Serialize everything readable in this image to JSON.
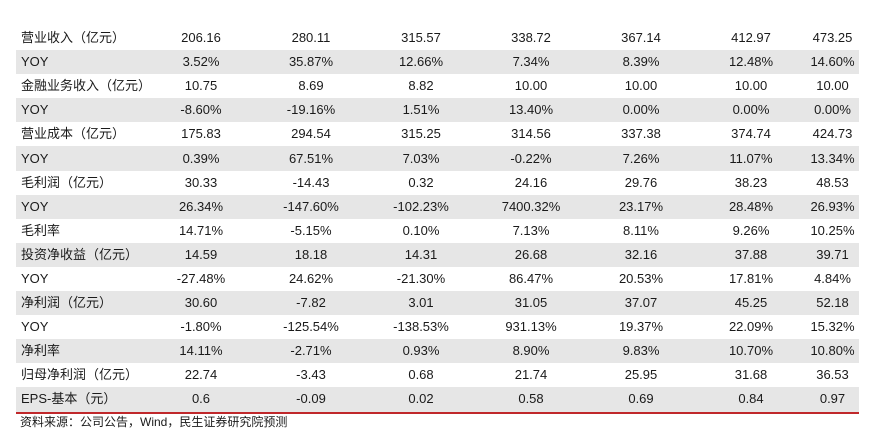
{
  "table": {
    "rows": [
      {
        "label": "营业收入（亿元）",
        "values": [
          "206.16",
          "280.11",
          "315.57",
          "338.72",
          "367.14",
          "412.97",
          "473.25"
        ]
      },
      {
        "label": "YOY",
        "values": [
          "3.52%",
          "35.87%",
          "12.66%",
          "7.34%",
          "8.39%",
          "12.48%",
          "14.60%"
        ]
      },
      {
        "label": "金融业务收入（亿元）",
        "values": [
          "10.75",
          "8.69",
          "8.82",
          "10.00",
          "10.00",
          "10.00",
          "10.00"
        ]
      },
      {
        "label": "YOY",
        "values": [
          "-8.60%",
          "-19.16%",
          "1.51%",
          "13.40%",
          "0.00%",
          "0.00%",
          "0.00%"
        ]
      },
      {
        "label": "营业成本（亿元）",
        "values": [
          "175.83",
          "294.54",
          "315.25",
          "314.56",
          "337.38",
          "374.74",
          "424.73"
        ]
      },
      {
        "label": "YOY",
        "values": [
          "0.39%",
          "67.51%",
          "7.03%",
          "-0.22%",
          "7.26%",
          "11.07%",
          "13.34%"
        ]
      },
      {
        "label": "毛利润（亿元）",
        "values": [
          "30.33",
          "-14.43",
          "0.32",
          "24.16",
          "29.76",
          "38.23",
          "48.53"
        ]
      },
      {
        "label": "YOY",
        "values": [
          "26.34%",
          "-147.60%",
          "-102.23%",
          "7400.32%",
          "23.17%",
          "28.48%",
          "26.93%"
        ]
      },
      {
        "label": "毛利率",
        "values": [
          "14.71%",
          "-5.15%",
          "0.10%",
          "7.13%",
          "8.11%",
          "9.26%",
          "10.25%"
        ]
      },
      {
        "label": "投资净收益（亿元）",
        "values": [
          "14.59",
          "18.18",
          "14.31",
          "26.68",
          "32.16",
          "37.88",
          "39.71"
        ]
      },
      {
        "label": "YOY",
        "values": [
          "-27.48%",
          "24.62%",
          "-21.30%",
          "86.47%",
          "20.53%",
          "17.81%",
          "4.84%"
        ]
      },
      {
        "label": "净利润（亿元）",
        "values": [
          "30.60",
          "-7.82",
          "3.01",
          "31.05",
          "37.07",
          "45.25",
          "52.18"
        ]
      },
      {
        "label": "YOY",
        "values": [
          "-1.80%",
          "-125.54%",
          "-138.53%",
          "931.13%",
          "19.37%",
          "22.09%",
          "15.32%"
        ]
      },
      {
        "label": "净利率",
        "values": [
          "14.11%",
          "-2.71%",
          "0.93%",
          "8.90%",
          "9.83%",
          "10.70%",
          "10.80%"
        ]
      },
      {
        "label": "归母净利润（亿元）",
        "values": [
          "22.74",
          "-3.43",
          "0.68",
          "21.74",
          "25.95",
          "31.68",
          "36.53"
        ]
      },
      {
        "label": "EPS-基本（元）",
        "values": [
          "0.6",
          "-0.09",
          "0.02",
          "0.58",
          "0.69",
          "0.84",
          "0.97"
        ]
      }
    ]
  },
  "source_note": "资料来源：公司公告，Wind，民生证券研究院预测",
  "colors": {
    "row_shade": "#e6e6e6",
    "rule_red": "#c0282b"
  }
}
